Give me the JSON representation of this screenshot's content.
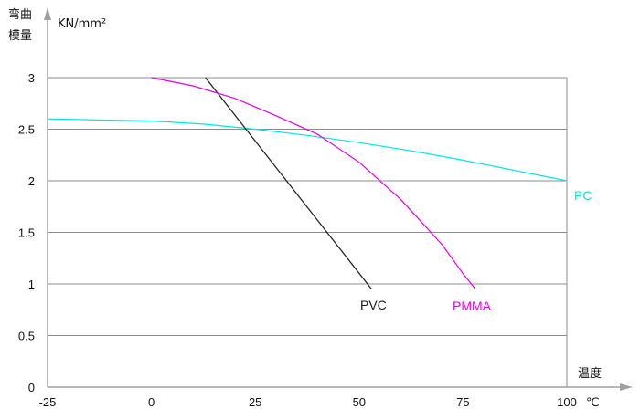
{
  "chart_data": {
    "type": "line",
    "ylabel_line1": "弯曲",
    "ylabel_line2": "模量",
    "yunit": "KN/mm²",
    "xlabel": "温度",
    "xunit": "℃",
    "xlim": [
      -25,
      100
    ],
    "ylim": [
      0,
      3
    ],
    "xticks": [
      -25,
      0,
      25,
      50,
      75,
      100
    ],
    "yticks": [
      0,
      0.5,
      1,
      1.5,
      2,
      2.5,
      3
    ],
    "grid": "horizontal",
    "series": [
      {
        "name": "PC",
        "color": "#00e5e5",
        "x": [
          -25,
          0,
          12.5,
          25,
          37.5,
          50,
          62.5,
          75,
          87.5,
          100
        ],
        "y": [
          2.6,
          2.58,
          2.55,
          2.5,
          2.44,
          2.37,
          2.29,
          2.2,
          2.1,
          2.0
        ]
      },
      {
        "name": "PVC",
        "color": "#1a1a1a",
        "x": [
          13,
          53
        ],
        "y": [
          3.0,
          0.95
        ]
      },
      {
        "name": "PMMA",
        "color": "#e600e6",
        "x": [
          0,
          10,
          20,
          30,
          40,
          50,
          60,
          70,
          75,
          78
        ],
        "y": [
          3.0,
          2.92,
          2.8,
          2.63,
          2.45,
          2.18,
          1.82,
          1.38,
          1.1,
          0.95
        ]
      }
    ]
  }
}
